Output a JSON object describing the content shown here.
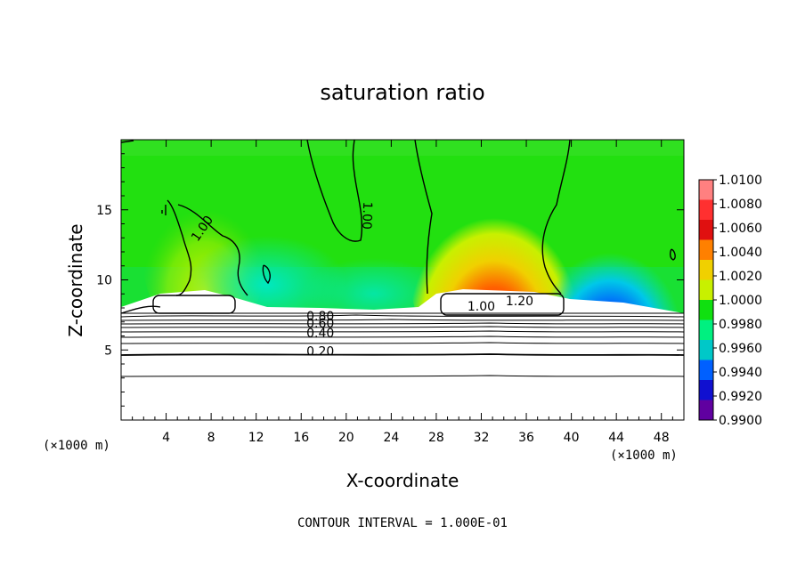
{
  "chart_data": {
    "type": "heatmap",
    "title": "saturation ratio",
    "xlabel": "X-coordinate",
    "ylabel": "Z-coordinate",
    "x_unit": "(×1000 m)",
    "x_unit_right": "(×1000 m)",
    "xlim": [
      0,
      50
    ],
    "ylim": [
      0,
      20
    ],
    "x_ticks": [
      "4",
      "8",
      "12",
      "16",
      "20",
      "24",
      "28",
      "32",
      "36",
      "40",
      "44",
      "48"
    ],
    "y_ticks": [
      "5",
      "10",
      "15"
    ],
    "colorbar": {
      "labels": [
        "1.0100",
        "1.0080",
        "1.0060",
        "1.0040",
        "1.0020",
        "1.0000",
        "0.9980",
        "0.9960",
        "0.9940",
        "0.9920",
        "0.9900"
      ],
      "colors": [
        "#ff8080",
        "#ff3030",
        "#e01010",
        "#ff8000",
        "#f0d000",
        "#c8f000",
        "#10e010",
        "#00f080",
        "#00c8c8",
        "#0060ff",
        "#1010d0",
        "#6000a0"
      ]
    },
    "contour_labels": [
      {
        "text": "1.00",
        "x": 7.5,
        "z": 13.5,
        "rotate": -55
      },
      {
        "text": "1.00",
        "x": 21.5,
        "z": 14.6,
        "rotate": 92
      },
      {
        "text": "1.00",
        "x": 32.0,
        "z": 7.8,
        "rotate": 0
      },
      {
        "text": "1.20",
        "x": 35.4,
        "z": 8.2,
        "rotate": 0
      },
      {
        "text": "0.80",
        "x": 17.7,
        "z": 7.1,
        "rotate": 0
      },
      {
        "text": "0.60",
        "x": 17.7,
        "z": 6.6,
        "rotate": 0
      },
      {
        "text": "0.40",
        "x": 17.7,
        "z": 5.9,
        "rotate": 0
      },
      {
        "text": "0.20",
        "x": 17.7,
        "z": 4.6,
        "rotate": 0
      }
    ],
    "contour_interval_text": "CONTOUR INTERVAL = 1.000E-01"
  }
}
